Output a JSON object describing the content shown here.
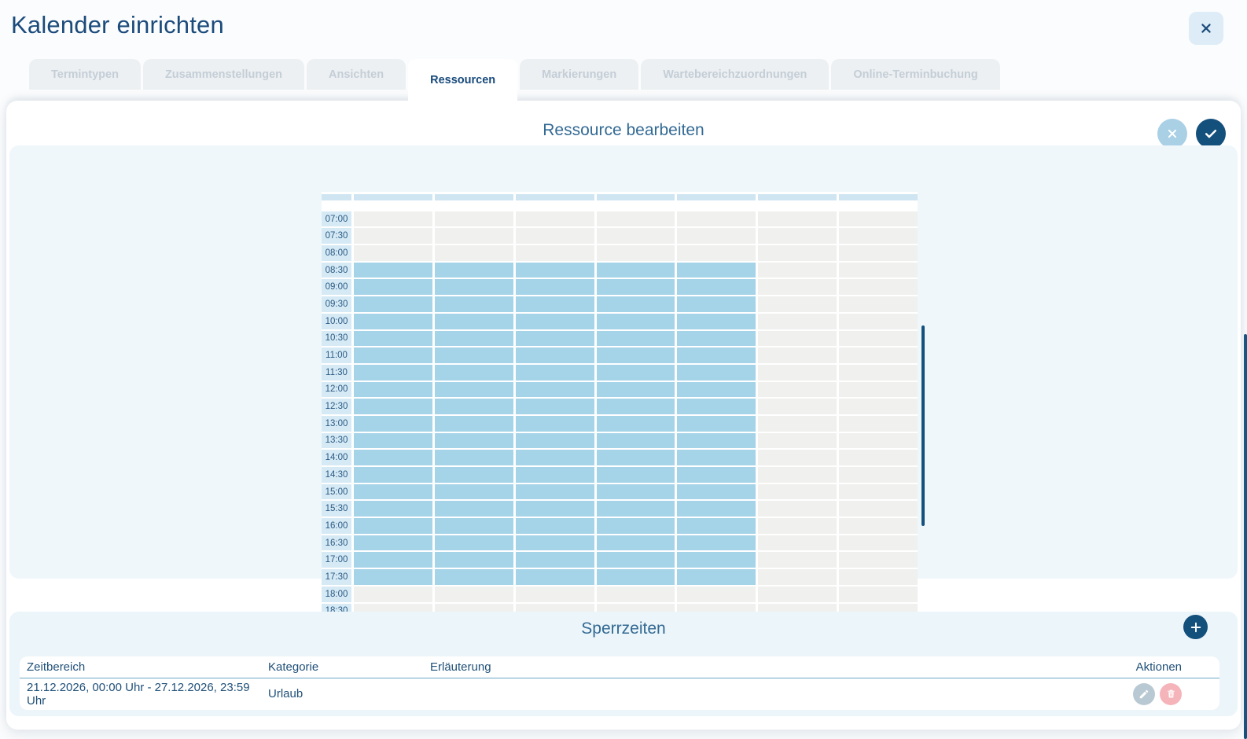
{
  "window": {
    "title": "Kalender einrichten"
  },
  "tabs": [
    {
      "id": "termintypen",
      "label": "Termintypen",
      "active": false
    },
    {
      "id": "zusammenstellungen",
      "label": "Zusammenstellungen",
      "active": false
    },
    {
      "id": "ansichten",
      "label": "Ansichten",
      "active": false
    },
    {
      "id": "ressourcen",
      "label": "Ressourcen",
      "active": true
    },
    {
      "id": "markierungen",
      "label": "Markierungen",
      "active": false
    },
    {
      "id": "wartebereichzuordnungen",
      "label": "Wartebereichzuordnungen",
      "active": false
    },
    {
      "id": "online-terminbuchung",
      "label": "Online-Terminbuchung",
      "active": false
    }
  ],
  "editor": {
    "title": "Ressource bearbeiten",
    "schedule": {
      "day_columns": 7,
      "times": [
        "07:00",
        "07:30",
        "08:00",
        "08:30",
        "09:00",
        "09:30",
        "10:00",
        "10:30",
        "11:00",
        "11:30",
        "12:00",
        "12:30",
        "13:00",
        "13:30",
        "14:00",
        "14:30",
        "15:00",
        "15:30",
        "16:00",
        "16:30",
        "17:00",
        "17:30",
        "18:00",
        "18:30"
      ],
      "highlight": {
        "from": "08:30",
        "to": "17:30",
        "days": [
          0,
          1,
          2,
          3,
          4
        ]
      }
    }
  },
  "blocked_times": {
    "title": "Sperrzeiten",
    "columns": {
      "zeitbereich": "Zeitbereich",
      "kategorie": "Kategorie",
      "erlaeuterung": "Erläuterung",
      "aktionen": "Aktionen"
    },
    "rows": [
      {
        "zeitbereich": "21.12.2026, 00:00 Uhr - 27.12.2026, 23:59 Uhr",
        "kategorie": "Urlaub",
        "erlaeuterung": ""
      }
    ]
  },
  "icons": {
    "window_close": "✕",
    "editor_cancel": "✕",
    "editor_confirm": "✓",
    "add": "+",
    "edit": "✎",
    "delete": "🗑"
  },
  "colors": {
    "accent_navy": "#14507c",
    "text_navy": "#1d4f7c",
    "highlight_blue": "#a5d3e8",
    "time_label_blue": "#d6eaf5",
    "cell_gray": "#f0f0ee",
    "panel_blue": "#eff7fb",
    "blocked_card_blue": "#ecf5f9",
    "cancel_circle_blue": "#a9d0e5",
    "edit_circle_gray": "#b9c9d3",
    "delete_circle_pink": "#f5b4ba",
    "inactive_tab_text": "#c4ced7"
  }
}
